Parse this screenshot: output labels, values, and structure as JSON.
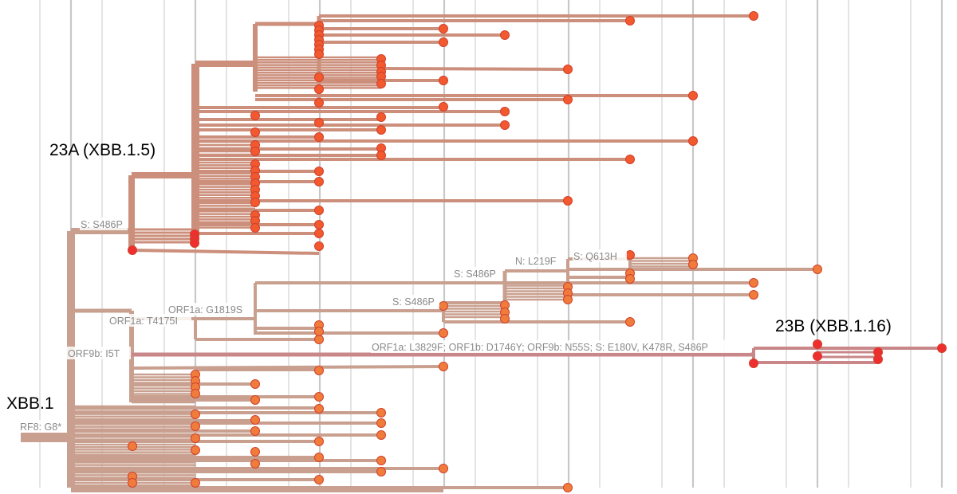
{
  "figure": {
    "type": "phylogenetic-tree",
    "description_labels": "clade labels and branch mutations as shown"
  },
  "clade_labels": {
    "root": "XBB.1",
    "clade_23a": "23A (XBB.1.5)",
    "clade_23b": "23B (XBB.1.16)"
  },
  "mutation_labels": {
    "orf8": "RF8: G8*",
    "s486p_23a": "S: S486P",
    "orf9b": "ORF9b: I5T",
    "orf1a_t4175i": "ORF1a: T4175I",
    "orf1a_g1819s": "ORF1a: G1819S",
    "s486p_mid": "S: S486P",
    "s486p_upper": "S: S486P",
    "n_l219f": "N: L219F",
    "s_q613h": "S: Q613H",
    "xbb116_defining": "ORF1a: L3829F; ORF1b: D1746Y; ORF9b: N55S; S: E180V, K478R, S486P"
  },
  "colors": {
    "branch_early": "#c9a08f",
    "branch_mid": "#cc8f7c",
    "branch_23b": "#c98789",
    "tip_orange": "#f07c3c",
    "tip_orange_red": "#f2592f",
    "tip_red": "#ef2f2f",
    "grid": "#dcdcdc"
  }
}
